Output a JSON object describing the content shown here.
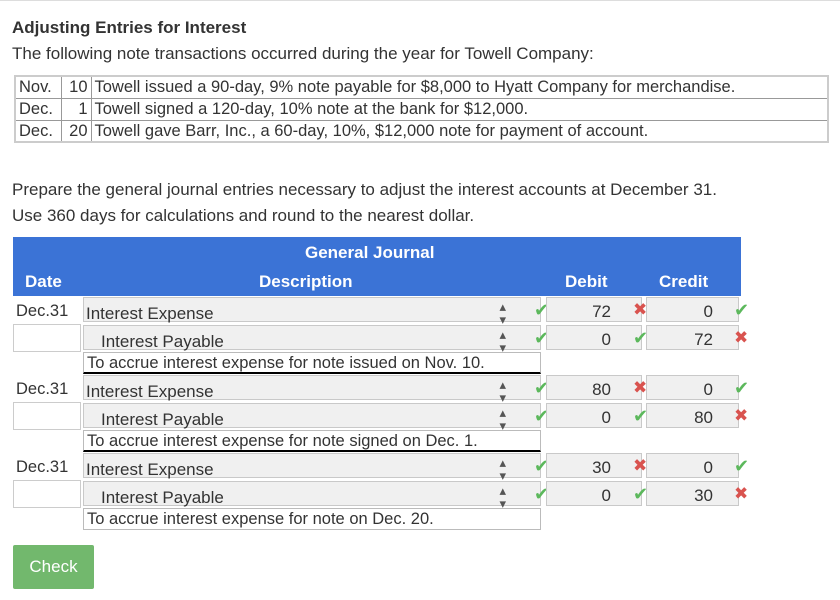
{
  "title": "Adjusting Entries for Interest",
  "intro": "The following note transactions occurred during the year for Towell Company:",
  "notes": [
    {
      "month": "Nov.",
      "day": "10",
      "text": "Towell issued a 90-day, 9% note payable for $8,000 to Hyatt Company for merchandise."
    },
    {
      "month": "Dec.",
      "day": "1",
      "text": "Towell signed a 120-day, 10% note at the bank for $12,000."
    },
    {
      "month": "Dec.",
      "day": "20",
      "text": "Towell gave Barr, Inc., a 60-day, 10%, $12,000 note for payment of account."
    }
  ],
  "instructions": {
    "line1": "Prepare the general journal entries necessary to adjust the interest accounts at December 31.",
    "line2": "Use 360 days for calculations and round to the nearest dollar."
  },
  "journal": {
    "heading": "General Journal",
    "columns": {
      "date": "Date",
      "description": "Description",
      "debit": "Debit",
      "credit": "Credit"
    },
    "entries": [
      {
        "date": "Dec.31",
        "debit_account": "Interest Expense",
        "debit_account_status": "correct",
        "debit_amount": "72",
        "debit_amount_status": "incorrect",
        "debit_credit": "0",
        "debit_credit_status": "correct",
        "credit_account": "Interest Payable",
        "credit_account_status": "correct",
        "credit_debit": "0",
        "credit_debit_status": "correct",
        "credit_amount": "72",
        "credit_amount_status": "incorrect",
        "memo": "To accrue interest expense for note issued on Nov. 10."
      },
      {
        "date": "Dec.31",
        "debit_account": "Interest Expense",
        "debit_account_status": "correct",
        "debit_amount": "80",
        "debit_amount_status": "incorrect",
        "debit_credit": "0",
        "debit_credit_status": "correct",
        "credit_account": "Interest Payable",
        "credit_account_status": "correct",
        "credit_debit": "0",
        "credit_debit_status": "correct",
        "credit_amount": "80",
        "credit_amount_status": "incorrect",
        "memo": "To accrue interest expense for note signed on Dec. 1."
      },
      {
        "date": "Dec.31",
        "debit_account": "Interest Expense",
        "debit_account_status": "correct",
        "debit_amount": "30",
        "debit_amount_status": "incorrect",
        "debit_credit": "0",
        "debit_credit_status": "correct",
        "credit_account": "Interest Payable",
        "credit_account_status": "correct",
        "credit_debit": "0",
        "credit_debit_status": "correct",
        "credit_amount": "30",
        "credit_amount_status": "incorrect",
        "memo": "To accrue interest expense for note on Dec. 20."
      }
    ]
  },
  "check_button": "Check",
  "colors": {
    "header": "#3b73d6",
    "correct": "#5cb85c",
    "incorrect": "#d9534f",
    "button": "#72b86d"
  }
}
